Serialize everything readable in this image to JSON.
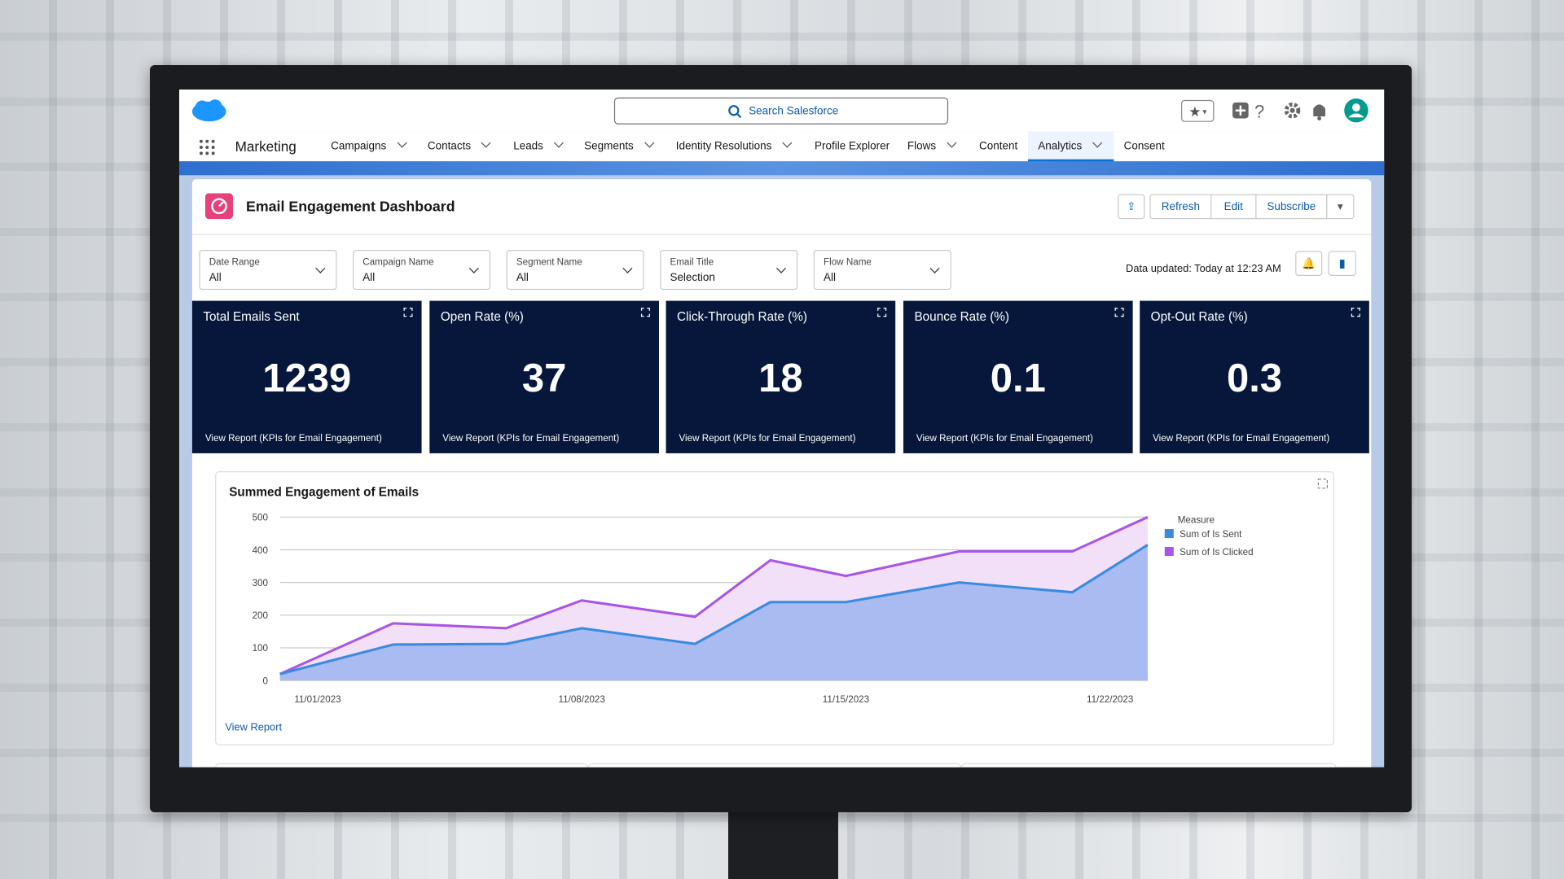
{
  "app": {
    "name": "Marketing",
    "search": "Search Salesforce",
    "nav": [
      {
        "label": "Campaigns",
        "dropdown": true,
        "active": false
      },
      {
        "label": "Contacts",
        "dropdown": true,
        "active": false
      },
      {
        "label": "Leads",
        "dropdown": true,
        "active": false
      },
      {
        "label": "Segments",
        "dropdown": true,
        "active": false
      },
      {
        "label": "Identity Resolutions",
        "dropdown": true,
        "active": false
      },
      {
        "label": "Profile Explorer",
        "dropdown": false,
        "active": false
      },
      {
        "label": "Flows",
        "dropdown": true,
        "active": false
      },
      {
        "label": "Content",
        "dropdown": false,
        "active": false
      },
      {
        "label": "Analytics",
        "dropdown": true,
        "active": true
      },
      {
        "label": "Consent",
        "dropdown": false,
        "active": false
      }
    ]
  },
  "dashboard": {
    "title": "Email Engagement Dashboard",
    "buttons": [
      "Refresh",
      "Edit",
      "Subscribe"
    ],
    "data_updated": "Data updated: Today at 12:23 AM",
    "filters": [
      {
        "label": "Date Range",
        "value": "All"
      },
      {
        "label": "Campaign Name",
        "value": "All"
      },
      {
        "label": "Segment Name",
        "value": "All"
      },
      {
        "label": "Email Title",
        "value": "Selection"
      },
      {
        "label": "Flow Name",
        "value": "All"
      }
    ],
    "kpis": [
      {
        "title": "Total Emails Sent",
        "value": 1239,
        "link": "View Report (KPIs for Email Engagement)"
      },
      {
        "title": "Open Rate (%)",
        "value": 37,
        "link": "View Report (KPIs for Email Engagement)"
      },
      {
        "title": "Click-Through Rate (%)",
        "value": 18,
        "link": "View Report (KPIs for Email Engagement)"
      },
      {
        "title": "Bounce Rate (%)",
        "value": 0.1,
        "link": "View Report (KPIs for Email Engagement)"
      },
      {
        "title": "Opt-Out Rate (%)",
        "value": 0.3,
        "link": "View Report (KPIs for Email Engagement)"
      }
    ]
  },
  "chart_data": {
    "type": "area",
    "title": "Summed Engagement of Emails",
    "legend_title": "Measure",
    "link": "View Report",
    "x": [
      0,
      3,
      6,
      8,
      11,
      13,
      15,
      18,
      21,
      23
    ],
    "xlim": [
      0,
      23
    ],
    "xticks": [
      {
        "value": 1,
        "label": "11/01/2023"
      },
      {
        "value": 8,
        "label": "11/08/2023"
      },
      {
        "value": 15,
        "label": "11/15/2023"
      },
      {
        "value": 22,
        "label": "11/22/2023"
      }
    ],
    "ylim": [
      0,
      500
    ],
    "yticks": [
      0,
      100,
      200,
      300,
      400,
      500
    ],
    "grid": true,
    "series": [
      {
        "name": "Sum of Is Clicked",
        "color": "#a855e8",
        "fill_color": "#f2e0f9",
        "values": [
          20,
          175,
          160,
          245,
          195,
          368,
          320,
          395,
          395,
          500
        ]
      },
      {
        "name": "Sum of Is Sent",
        "color": "#3a8be0",
        "fill_color": "#a9bbf0",
        "values": [
          20,
          110,
          112,
          160,
          112,
          240,
          240,
          300,
          270,
          415
        ]
      }
    ]
  }
}
